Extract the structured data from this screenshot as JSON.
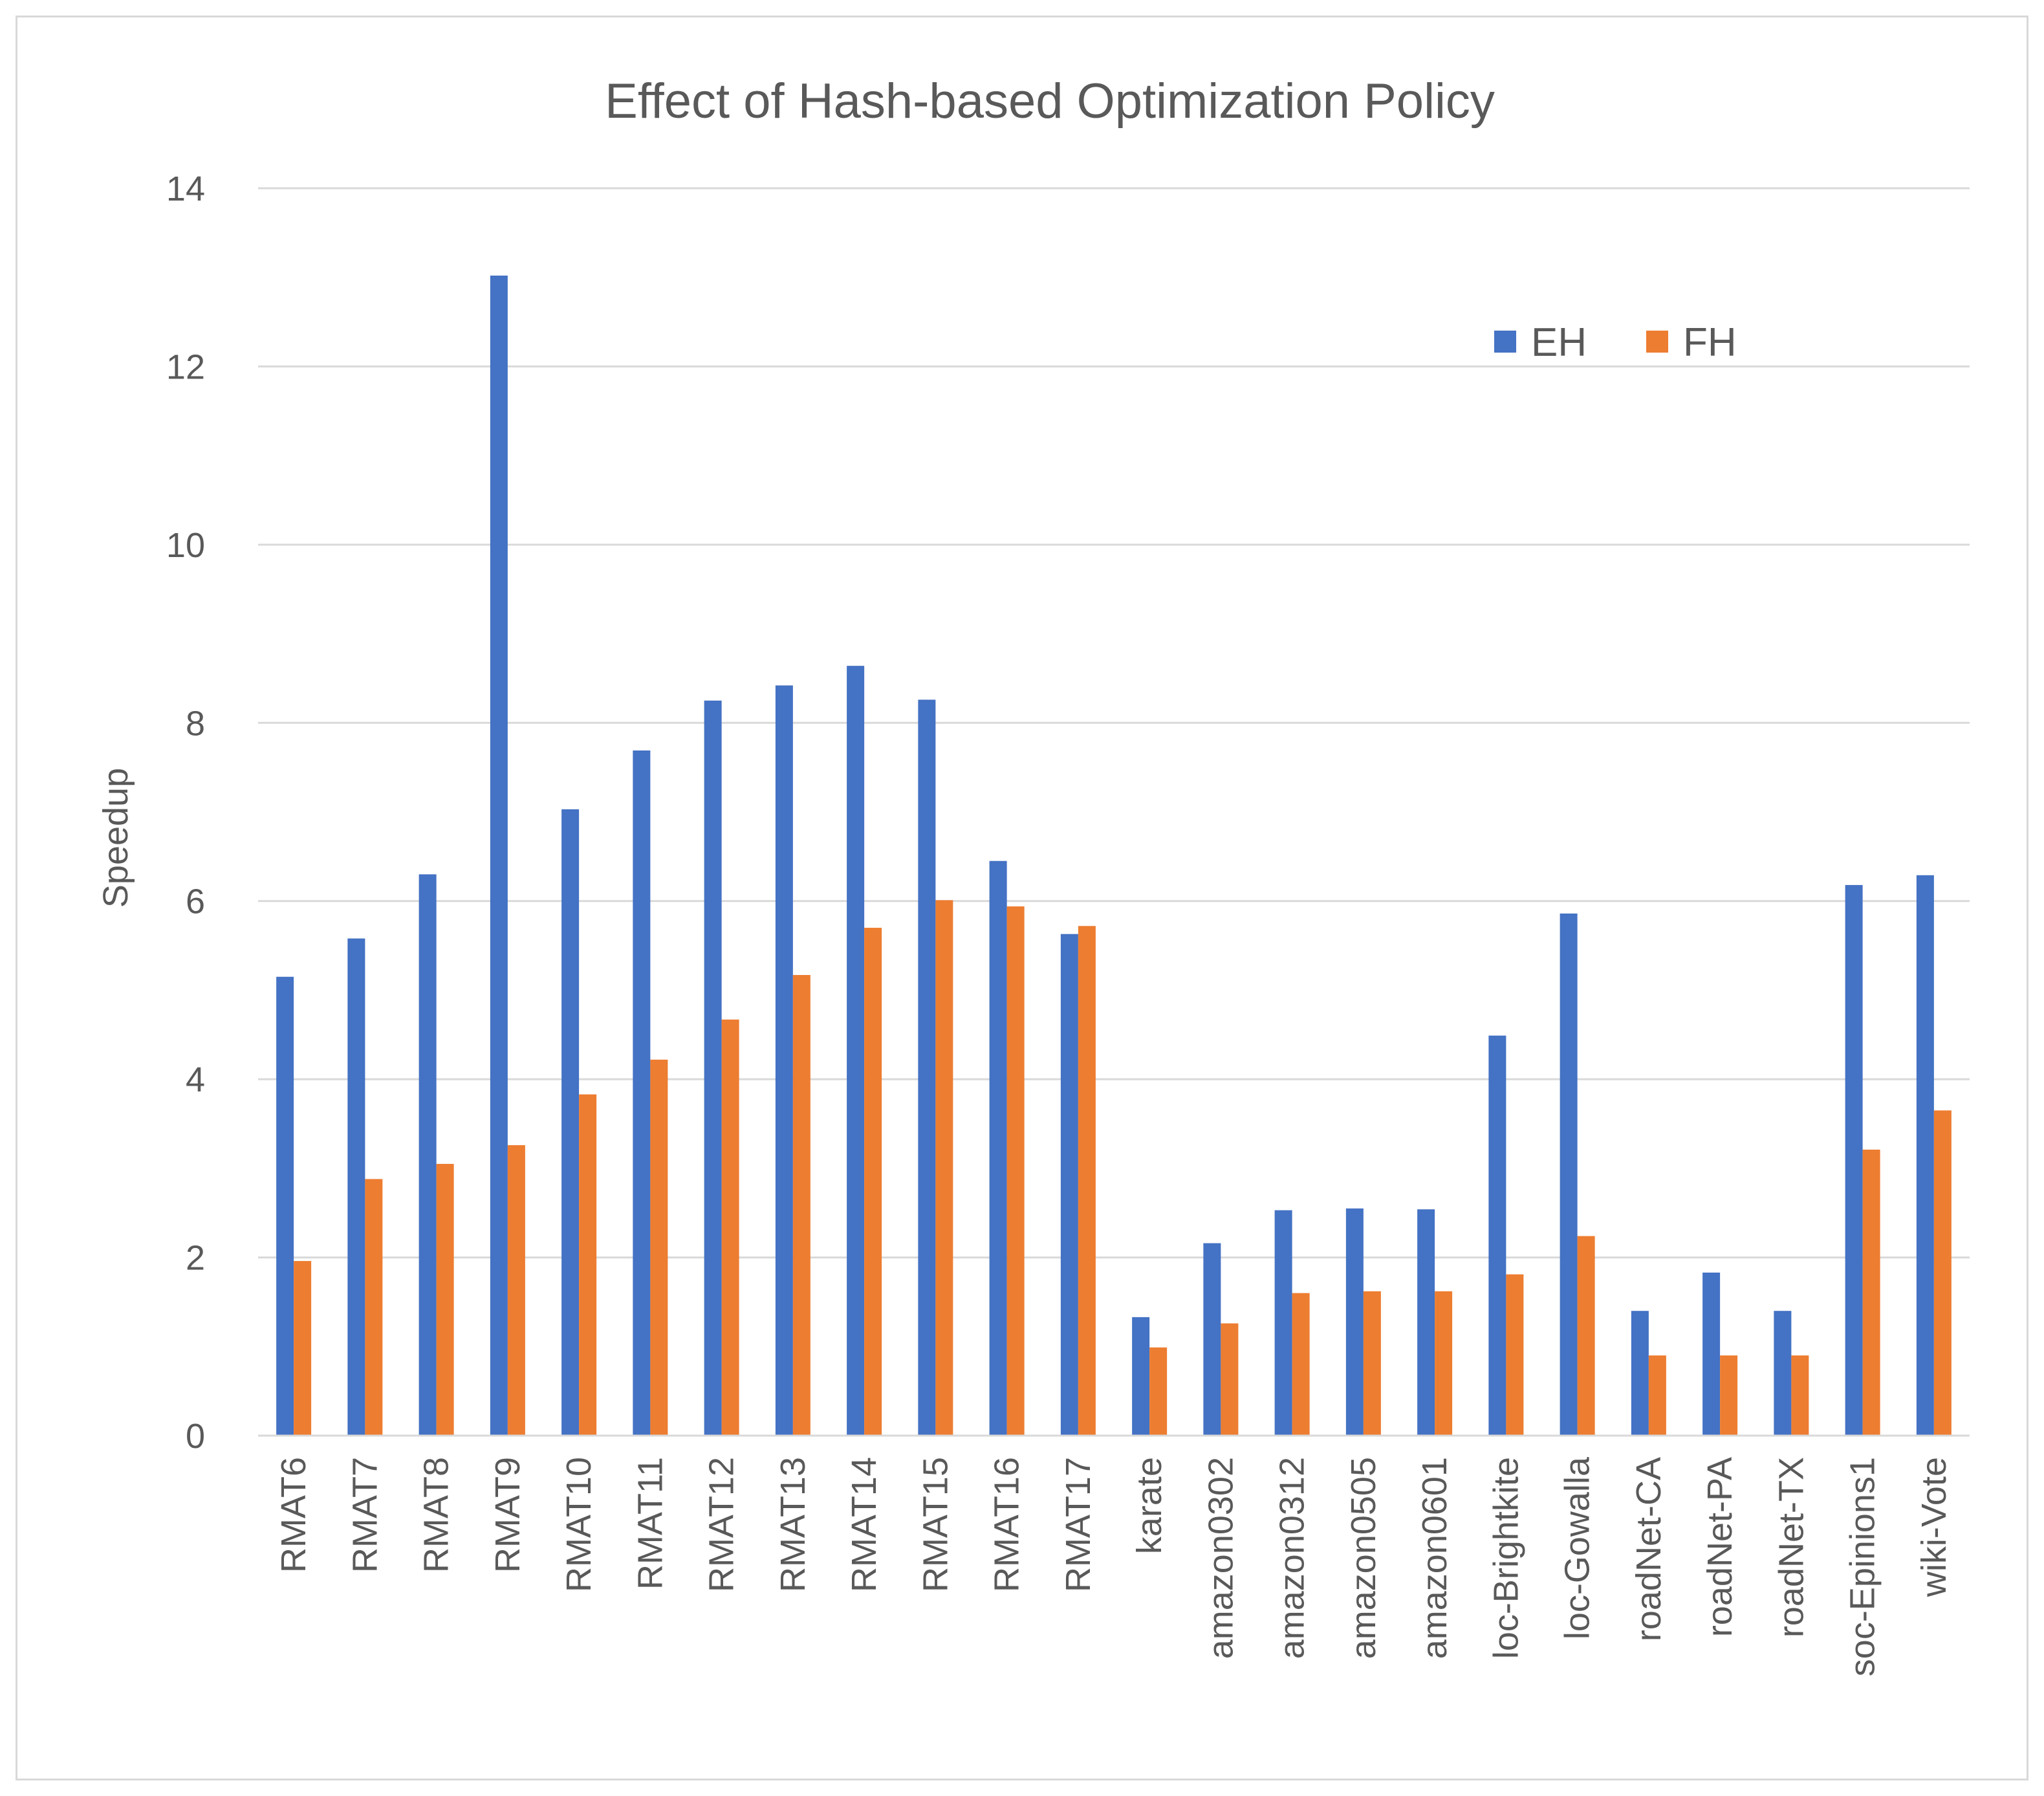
{
  "chart_data": {
    "type": "bar",
    "title": "Effect of Hash-based Optimization Policy",
    "xlabel": "",
    "ylabel": "Speedup",
    "ylim": [
      0,
      14
    ],
    "yticks": [
      "0",
      "2",
      "4",
      "6",
      "8",
      "10",
      "12",
      "14"
    ],
    "grid": true,
    "legend_position": "top-right",
    "categories": [
      "RMAT6",
      "RMAT7",
      "RMAT8",
      "RMAT9",
      "RMAT10",
      "RMAT11",
      "RMAT12",
      "RMAT13",
      "RMAT14",
      "RMAT15",
      "RMAT16",
      "RMAT17",
      "karate",
      "amazon0302",
      "amazon0312",
      "amazon0505",
      "amazon0601",
      "loc-Brightkite",
      "loc-Gowalla",
      "roadNet-CA",
      "roadNet-PA",
      "roadNet-TX",
      "soc-Epinions1",
      "wiki-Vote"
    ],
    "series": [
      {
        "name": "EH",
        "color": "#4472c4",
        "values": [
          5.15,
          5.58,
          6.3,
          13.02,
          7.03,
          7.69,
          8.25,
          8.42,
          8.64,
          8.26,
          6.45,
          5.63,
          1.33,
          2.16,
          2.53,
          2.55,
          2.54,
          4.49,
          5.86,
          1.4,
          1.83,
          1.4,
          6.18,
          6.29
        ]
      },
      {
        "name": "FH",
        "color": "#ed7d31",
        "values": [
          1.96,
          2.88,
          3.05,
          3.26,
          3.83,
          4.22,
          4.67,
          5.17,
          5.7,
          6.01,
          5.94,
          5.72,
          0.99,
          1.26,
          1.6,
          1.62,
          1.62,
          1.81,
          2.24,
          0.9,
          0.9,
          0.9,
          3.21,
          3.65
        ]
      }
    ]
  }
}
